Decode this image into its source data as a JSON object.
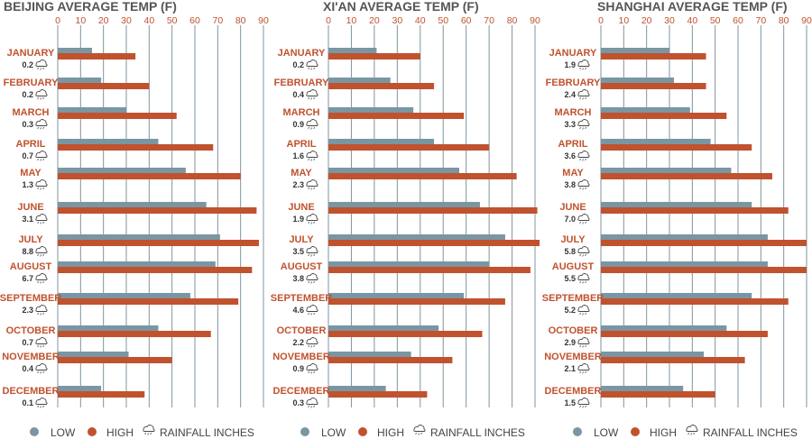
{
  "colors": {
    "low": "#7a96a3",
    "high": "#c0522e",
    "grid": "#7f95a1",
    "text": "#555555"
  },
  "legend": {
    "low": "LOW",
    "high": "HIGH",
    "rainfall": "RAINFALL  INCHES"
  },
  "chart_data": [
    {
      "type": "bar",
      "title": "BEIJING AVERAGE TEMP (F)",
      "xlim": [
        0,
        90
      ],
      "ticks": [
        0,
        10,
        20,
        30,
        40,
        50,
        60,
        70,
        80,
        90
      ],
      "categories": [
        "JANUARY",
        "FEBRUARY",
        "MARCH",
        "APRIL",
        "MAY",
        "JUNE",
        "JULY",
        "AUGUST",
        "SEPTEMBER",
        "OCTOBER",
        "NOVEMBER",
        "DECEMBER"
      ],
      "series": [
        {
          "name": "LOW",
          "values": [
            15,
            19,
            30,
            44,
            56,
            65,
            71,
            69,
            58,
            44,
            31,
            19
          ]
        },
        {
          "name": "HIGH",
          "values": [
            34,
            40,
            52,
            68,
            80,
            87,
            88,
            85,
            79,
            67,
            50,
            38
          ]
        }
      ],
      "rainfall": [
        "0.2",
        "0.2",
        "0.3",
        "0.7",
        "1.3",
        "3.1",
        "8.8",
        "6.7",
        "2.3",
        "0.7",
        "0.4",
        "0.1"
      ]
    },
    {
      "type": "bar",
      "title": "XI'AN AVERAGE TEMP (F)",
      "xlim": [
        0,
        90
      ],
      "ticks": [
        0,
        10,
        20,
        30,
        40,
        50,
        60,
        70,
        80,
        90
      ],
      "categories": [
        "JANUARY",
        "FEBRUARY",
        "MARCH",
        "APRIL",
        "MAY",
        "JUNE",
        "JULY",
        "AUGUST",
        "SEPTEMBER",
        "OCTOBER",
        "NOVEMBER",
        "DECEMBER"
      ],
      "series": [
        {
          "name": "LOW",
          "values": [
            21,
            27,
            37,
            46,
            57,
            66,
            77,
            70,
            59,
            48,
            36,
            25
          ]
        },
        {
          "name": "HIGH",
          "values": [
            40,
            46,
            59,
            70,
            82,
            91,
            92,
            88,
            77,
            67,
            54,
            43
          ]
        }
      ],
      "rainfall": [
        "0.2",
        "0.4",
        "0.9",
        "1.6",
        "2.3",
        "1.9",
        "3.5",
        "3.8",
        "4.6",
        "2.2",
        "0.9",
        "0.3"
      ]
    },
    {
      "type": "bar",
      "title": "SHANGHAI AVERAGE TEMP (F)",
      "xlim": [
        0,
        90
      ],
      "ticks": [
        0,
        10,
        20,
        30,
        40,
        50,
        60,
        70,
        80,
        90
      ],
      "categories": [
        "JANUARY",
        "FEBRUARY",
        "MARCH",
        "APRIL",
        "MAY",
        "JUNE",
        "JULY",
        "AUGUST",
        "SEPTEMBER",
        "OCTOBER",
        "NOVEMBER",
        "DECEMBER"
      ],
      "series": [
        {
          "name": "LOW",
          "values": [
            30,
            32,
            39,
            48,
            57,
            66,
            73,
            73,
            66,
            55,
            45,
            36
          ]
        },
        {
          "name": "HIGH",
          "values": [
            46,
            46,
            55,
            66,
            75,
            82,
            90,
            90,
            82,
            73,
            63,
            50
          ]
        }
      ],
      "rainfall": [
        "1.9",
        "2.4",
        "3.3",
        "3.6",
        "3.8",
        "7.0",
        "5.8",
        "5.5",
        "5.2",
        "2.9",
        "2.1",
        "1.5"
      ]
    }
  ]
}
